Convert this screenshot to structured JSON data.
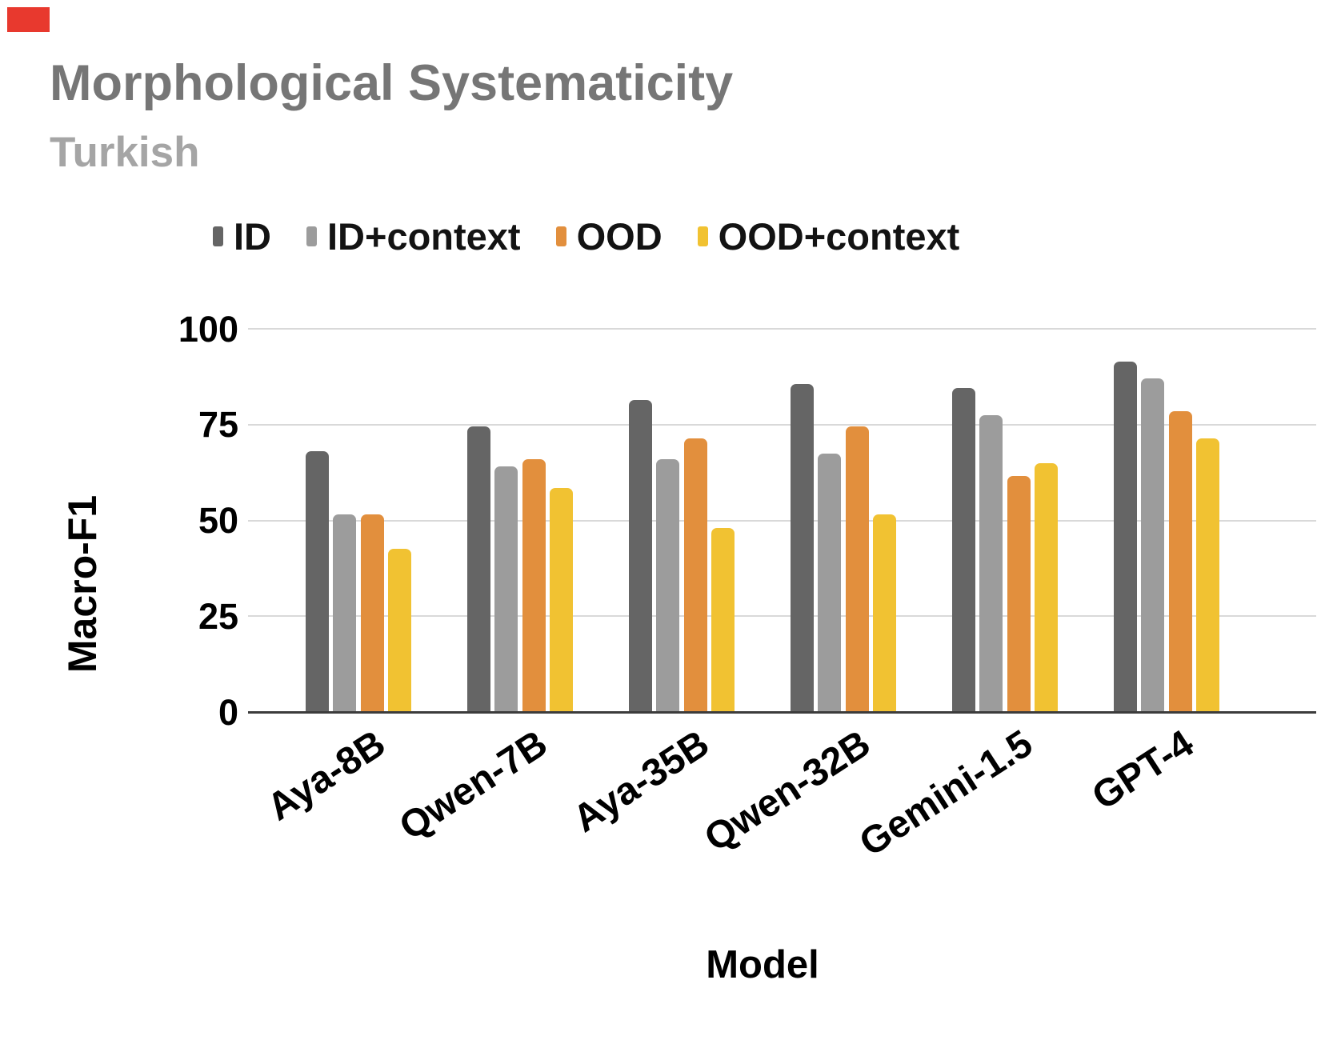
{
  "chart": {
    "title": "Morphological Systematicity",
    "subtitle": "Turkish"
  },
  "marker": {
    "color": "#e8392e"
  },
  "colors": {
    "title": "#767676",
    "subtitle": "#a5a5a5",
    "legend_text": "#131313",
    "axis_text": "#000000",
    "gridline": "#d9d9d9",
    "baseline": "#3c3c3c",
    "background": "#ffffff"
  },
  "chart_data": {
    "type": "bar",
    "title": "Morphological Systematicity",
    "subtitle": "Turkish",
    "xlabel": "Model",
    "ylabel": "Macro-F1",
    "ylim": [
      0,
      100
    ],
    "yticks": [
      0,
      25,
      50,
      75,
      100
    ],
    "grid": true,
    "legend_position": "top",
    "categories": [
      "Aya-8B",
      "Qwen-7B",
      "Aya-35B",
      "Qwen-32B",
      "Gemini-1.5",
      "GPT-4"
    ],
    "series": [
      {
        "name": "ID",
        "color": "#656565",
        "values": [
          68,
          74.5,
          81.5,
          85.5,
          84.5,
          91.5
        ]
      },
      {
        "name": "ID+context",
        "color": "#9c9c9c",
        "values": [
          51.5,
          64,
          66,
          67.5,
          77.5,
          87
        ]
      },
      {
        "name": "OOD",
        "color": "#e28f3d",
        "values": [
          51.5,
          66,
          71.5,
          74.5,
          61.5,
          78.5
        ]
      },
      {
        "name": "OOD+context",
        "color": "#f1c232",
        "values": [
          42.5,
          58.5,
          48,
          51.5,
          65,
          71.5
        ]
      }
    ]
  }
}
